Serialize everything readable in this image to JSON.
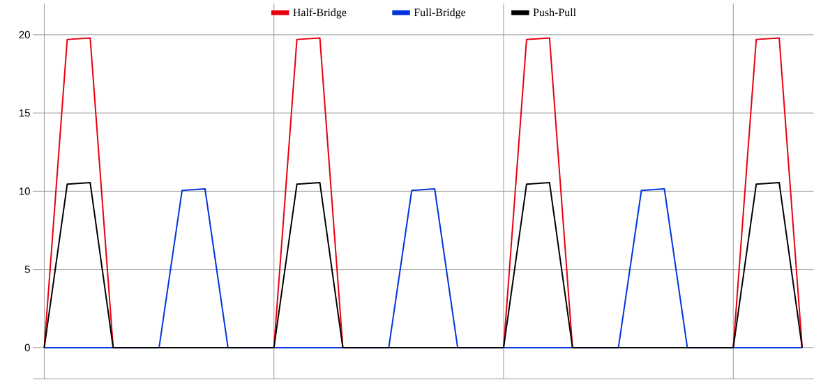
{
  "chart_data": {
    "type": "line",
    "categories": [
      null,
      null,
      null,
      null,
      null,
      null,
      null,
      null,
      null,
      null,
      null,
      null,
      null,
      null,
      null,
      null,
      null,
      null,
      null,
      null,
      null,
      null,
      null,
      null,
      null,
      null,
      null,
      null,
      null,
      null,
      null,
      null,
      null,
      null
    ],
    "series": [
      {
        "name": "Half-Bridge",
        "color": "#e8000f",
        "values": [
          0,
          19.7,
          19.8,
          0,
          null,
          null,
          null,
          null,
          null,
          null,
          0,
          19.7,
          19.8,
          0,
          null,
          null,
          null,
          null,
          null,
          null,
          0,
          19.7,
          19.8,
          0,
          null,
          null,
          null,
          null,
          null,
          null,
          0,
          19.7,
          19.8,
          0
        ]
      },
      {
        "name": "Full-Bridge",
        "color": "#0033dd",
        "values": [
          0,
          0,
          0,
          0,
          0,
          0,
          10.05,
          10.15,
          0,
          0,
          0,
          0,
          0,
          0,
          0,
          0,
          10.05,
          10.15,
          0,
          0,
          0,
          0,
          0,
          0,
          0,
          0,
          10.05,
          10.15,
          0,
          0,
          0,
          0,
          0,
          0
        ]
      },
      {
        "name": "Push-Pull",
        "color": "#000000",
        "values": [
          0,
          10.45,
          10.55,
          0,
          0,
          0,
          0,
          0,
          0,
          0,
          0,
          10.45,
          10.55,
          0,
          0,
          0,
          0,
          0,
          0,
          0,
          0,
          10.45,
          10.55,
          0,
          0,
          0,
          0,
          0,
          0,
          0,
          0,
          10.45,
          10.55,
          0
        ]
      }
    ],
    "ylim": [
      -2,
      22
    ],
    "yticks": [
      0,
      5,
      10,
      15,
      20
    ],
    "grid": true,
    "legend": "top",
    "tick_labels": "y",
    "marker": "none",
    "line_style": "solid"
  }
}
